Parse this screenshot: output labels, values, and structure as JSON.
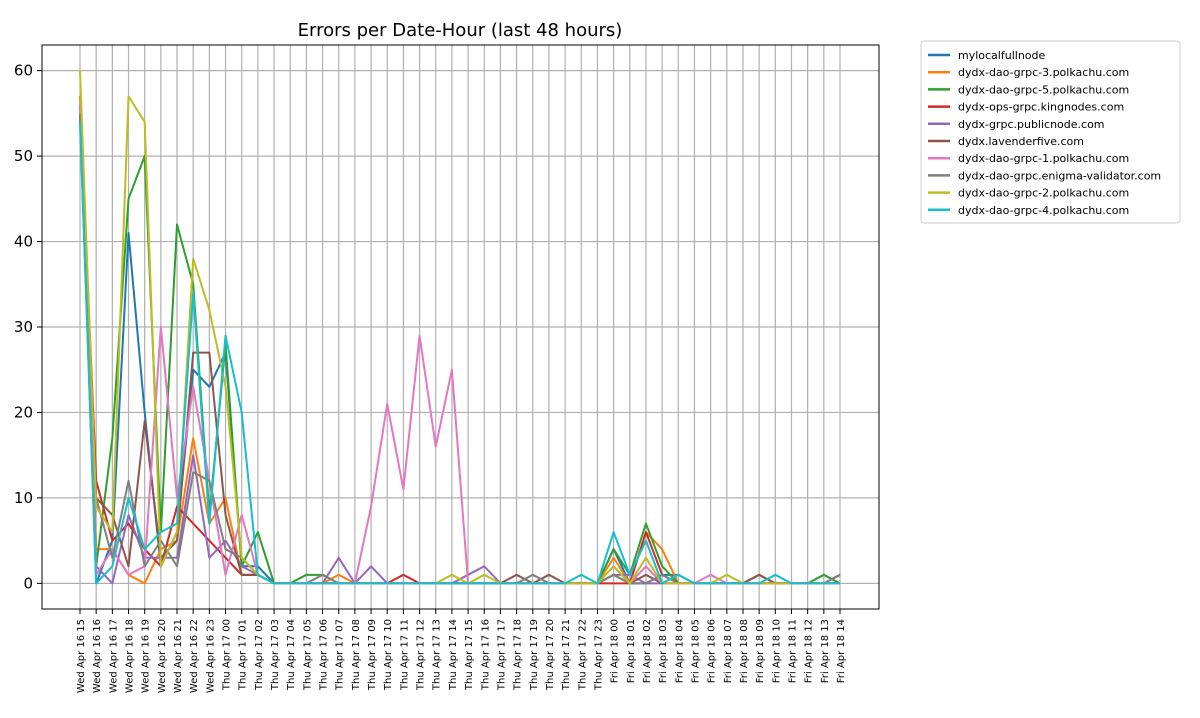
{
  "chart_data": {
    "type": "line",
    "title": "Errors per Date-Hour (last 48 hours)",
    "xlabel": "",
    "ylabel": "",
    "ylim": [
      -3,
      63
    ],
    "yticks": [
      0,
      10,
      20,
      30,
      40,
      50,
      60
    ],
    "grid": true,
    "legend_position": "outside-top-right",
    "categories": [
      "Wed Apr 16 15",
      "Wed Apr 16 16",
      "Wed Apr 16 17",
      "Wed Apr 16 18",
      "Wed Apr 16 19",
      "Wed Apr 16 20",
      "Wed Apr 16 21",
      "Wed Apr 16 22",
      "Wed Apr 16 23",
      "Thu Apr 17 00",
      "Thu Apr 17 01",
      "Thu Apr 17 02",
      "Thu Apr 17 03",
      "Thu Apr 17 04",
      "Thu Apr 17 05",
      "Thu Apr 17 06",
      "Thu Apr 17 07",
      "Thu Apr 17 08",
      "Thu Apr 17 09",
      "Thu Apr 17 10",
      "Thu Apr 17 11",
      "Thu Apr 17 12",
      "Thu Apr 17 13",
      "Thu Apr 17 14",
      "Thu Apr 17 15",
      "Thu Apr 17 16",
      "Thu Apr 17 17",
      "Thu Apr 17 18",
      "Thu Apr 17 19",
      "Thu Apr 17 20",
      "Thu Apr 17 21",
      "Thu Apr 17 22",
      "Thu Apr 17 23",
      "Fri Apr 18 00",
      "Fri Apr 18 01",
      "Fri Apr 18 02",
      "Fri Apr 18 03",
      "Fri Apr 18 04",
      "Fri Apr 18 05",
      "Fri Apr 18 06",
      "Fri Apr 18 07",
      "Fri Apr 18 08",
      "Fri Apr 18 09",
      "Fri Apr 18 10",
      "Fri Apr 18 11",
      "Fri Apr 18 12",
      "Fri Apr 18 13",
      "Fri Apr 18 14"
    ],
    "series": [
      {
        "name": "mylocalfullnode",
        "color": "#1f77b4",
        "values": [
          55,
          0,
          5,
          41,
          20,
          2,
          6,
          25,
          23,
          27,
          2,
          2,
          0,
          0,
          0,
          0,
          0,
          0,
          0,
          0,
          0,
          0,
          0,
          0,
          0,
          0,
          0,
          0,
          0,
          0,
          0,
          0,
          0,
          4,
          0,
          0,
          1,
          1,
          0,
          0,
          0,
          0,
          0,
          0,
          0,
          0,
          0,
          0
        ]
      },
      {
        "name": "dydx-dao-grpc-3.polkachu.com",
        "color": "#ff7f0e",
        "values": [
          57,
          4,
          4,
          1,
          0,
          4,
          5,
          17,
          7,
          10,
          1,
          1,
          0,
          0,
          0,
          0,
          1,
          0,
          0,
          0,
          0,
          0,
          0,
          0,
          0,
          0,
          0,
          0,
          0,
          0,
          0,
          0,
          0,
          3,
          0,
          6,
          4,
          0,
          0,
          0,
          0,
          0,
          0,
          0,
          0,
          0,
          0,
          0
        ]
      },
      {
        "name": "dydx-dao-grpc-5.polkachu.com",
        "color": "#2ca02c",
        "values": [
          55,
          2,
          17,
          45,
          50,
          6,
          42,
          35,
          8,
          28,
          2,
          6,
          0,
          0,
          1,
          1,
          0,
          0,
          0,
          0,
          0,
          0,
          0,
          0,
          0,
          0,
          0,
          0,
          0,
          0,
          0,
          0,
          0,
          4,
          1,
          7,
          2,
          0,
          0,
          0,
          0,
          0,
          0,
          0,
          0,
          0,
          1,
          0
        ]
      },
      {
        "name": "dydx-ops-grpc.kingnodes.com",
        "color": "#d62728",
        "values": [
          56,
          12,
          5,
          7,
          4,
          2,
          9,
          7,
          5,
          3,
          1,
          1,
          0,
          0,
          0,
          0,
          0,
          0,
          0,
          0,
          1,
          0,
          0,
          0,
          0,
          0,
          0,
          0,
          0,
          0,
          0,
          0,
          0,
          0,
          0,
          6,
          1,
          0,
          0,
          0,
          0,
          0,
          1,
          0,
          0,
          0,
          0,
          0
        ]
      },
      {
        "name": "dydx-grpc.publicnode.com",
        "color": "#9467bd",
        "values": [
          54,
          2,
          0,
          8,
          3,
          3,
          3,
          15,
          3,
          5,
          2,
          1,
          0,
          0,
          0,
          0,
          3,
          0,
          2,
          0,
          0,
          0,
          0,
          0,
          1,
          2,
          0,
          0,
          0,
          0,
          0,
          0,
          0,
          1,
          1,
          0,
          0,
          0,
          0,
          0,
          0,
          0,
          0,
          0,
          0,
          0,
          0,
          0
        ]
      },
      {
        "name": "dydx.lavenderfive.com",
        "color": "#8c564b",
        "values": [
          55,
          10,
          8,
          2,
          19,
          3,
          5,
          27,
          27,
          8,
          1,
          1,
          0,
          0,
          0,
          0,
          0,
          0,
          0,
          0,
          0,
          0,
          0,
          0,
          0,
          0,
          0,
          1,
          0,
          1,
          0,
          0,
          0,
          1,
          0,
          1,
          0,
          0,
          0,
          0,
          0,
          0,
          1,
          0,
          0,
          0,
          0,
          1
        ]
      },
      {
        "name": "dydx-dao-grpc-1.polkachu.com",
        "color": "#e377c2",
        "values": [
          56,
          1,
          4,
          1,
          2,
          30,
          10,
          23,
          12,
          1,
          8,
          1,
          0,
          0,
          0,
          0,
          0,
          0,
          9,
          21,
          11,
          29,
          16,
          25,
          0,
          0,
          0,
          0,
          0,
          0,
          0,
          0,
          0,
          2,
          0,
          2,
          0,
          0,
          0,
          1,
          0,
          0,
          0,
          0,
          0,
          0,
          0,
          0
        ]
      },
      {
        "name": "dydx-dao-grpc.enigma-validator.com",
        "color": "#7f7f7f",
        "values": [
          55,
          10,
          3,
          12,
          2,
          5,
          2,
          13,
          12,
          4,
          3,
          1,
          0,
          0,
          0,
          1,
          0,
          0,
          0,
          0,
          0,
          0,
          0,
          0,
          0,
          0,
          0,
          0,
          1,
          0,
          0,
          0,
          0,
          1,
          0,
          0,
          1,
          0,
          0,
          0,
          0,
          0,
          0,
          0,
          0,
          0,
          0,
          1
        ]
      },
      {
        "name": "dydx-dao-grpc-2.polkachu.com",
        "color": "#bcbd22",
        "values": [
          60,
          9,
          6,
          57,
          54,
          2,
          6,
          38,
          32,
          23,
          3,
          1,
          0,
          0,
          0,
          0,
          0,
          0,
          0,
          0,
          0,
          0,
          0,
          1,
          0,
          1,
          0,
          0,
          0,
          0,
          0,
          0,
          0,
          2,
          0,
          3,
          0,
          0,
          0,
          0,
          1,
          0,
          0,
          0,
          0,
          0,
          0,
          0
        ]
      },
      {
        "name": "dydx-dao-grpc-4.polkachu.com",
        "color": "#17becf",
        "values": [
          54,
          0,
          2,
          10,
          4,
          6,
          7,
          34,
          7,
          29,
          20,
          1,
          0,
          0,
          0,
          0,
          0,
          0,
          0,
          0,
          0,
          0,
          0,
          0,
          0,
          0,
          0,
          0,
          0,
          0,
          0,
          1,
          0,
          6,
          1,
          5,
          0,
          1,
          0,
          0,
          0,
          0,
          0,
          1,
          0,
          0,
          0,
          0
        ]
      }
    ]
  }
}
